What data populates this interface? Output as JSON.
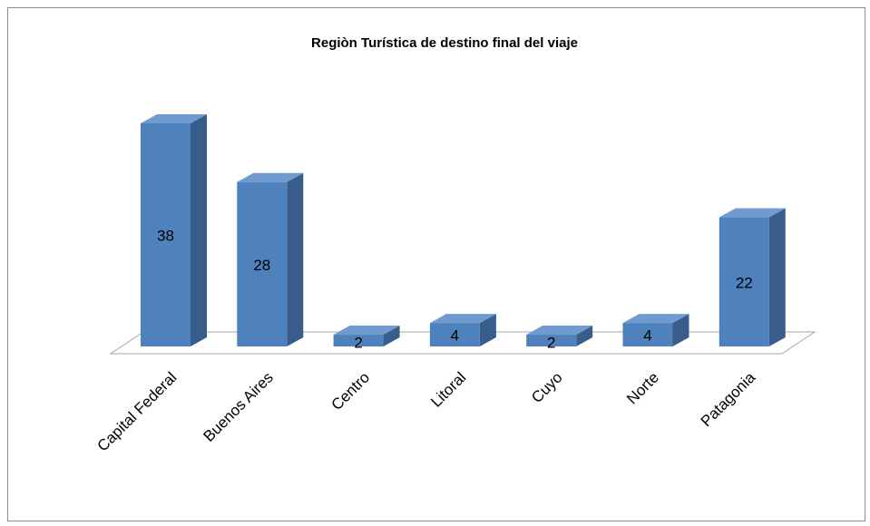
{
  "chart_data": {
    "type": "bar3d",
    "title": "Regiòn Turística de destino final del viaje",
    "categories": [
      "Capital Federal",
      "Buenos Aires",
      "Centro",
      "Litoral",
      "Cuyo",
      "Norte",
      "Patagonia"
    ],
    "values": [
      38,
      28,
      2,
      4,
      2,
      4,
      22
    ],
    "color": "#4f81bd"
  }
}
